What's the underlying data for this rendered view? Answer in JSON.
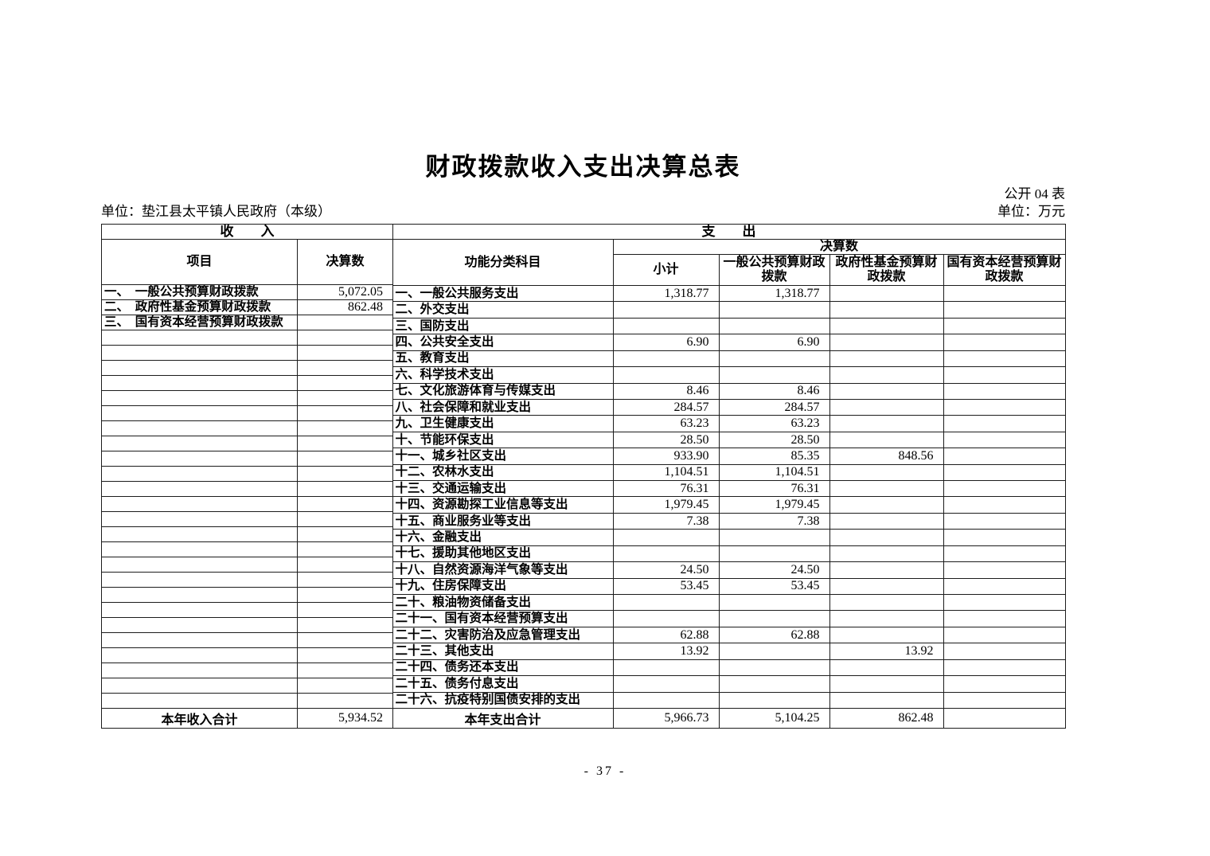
{
  "page": {
    "title": "财政拨款收入支出决算总表",
    "table_code": "公开 04 表",
    "unit_left": "单位：垫江县太平镇人民政府（本级）",
    "unit_right": "单位：万元",
    "page_number": "- 37 -"
  },
  "income": {
    "section_title": "收　　入",
    "columns": {
      "item": "项目",
      "amount": "决算数"
    },
    "rows": [
      {
        "item": "一、　一般公共预算财政拨款",
        "amount": "5,072.05"
      },
      {
        "item": "二、　政府性基金预算财政拨款",
        "amount": "862.48"
      },
      {
        "item": "三、　国有资本经营预算财政拨款",
        "amount": ""
      }
    ],
    "empty_row_count": 25,
    "total": {
      "item": "本年收入合计",
      "amount": "5,934.52"
    }
  },
  "expense": {
    "section_title": "支　　出",
    "subject_column": "功能分类科目",
    "group_header": "决算数",
    "columns": [
      "小计",
      "一般公共预算财政拨款",
      "政府性基金预算财政拨款",
      "国有资本经营预算财政拨款"
    ],
    "rows": [
      {
        "item": "一、一般公共服务支出",
        "values": [
          "1,318.77",
          "1,318.77",
          "",
          ""
        ]
      },
      {
        "item": "二、外交支出",
        "values": [
          "",
          "",
          "",
          ""
        ]
      },
      {
        "item": "三、国防支出",
        "values": [
          "",
          "",
          "",
          ""
        ]
      },
      {
        "item": "四、公共安全支出",
        "values": [
          "6.90",
          "6.90",
          "",
          ""
        ]
      },
      {
        "item": "五、教育支出",
        "values": [
          "",
          "",
          "",
          ""
        ]
      },
      {
        "item": "六、科学技术支出",
        "values": [
          "",
          "",
          "",
          ""
        ]
      },
      {
        "item": "七、文化旅游体育与传媒支出",
        "values": [
          "8.46",
          "8.46",
          "",
          ""
        ]
      },
      {
        "item": "八、社会保障和就业支出",
        "values": [
          "284.57",
          "284.57",
          "",
          ""
        ]
      },
      {
        "item": "九、卫生健康支出",
        "values": [
          "63.23",
          "63.23",
          "",
          ""
        ]
      },
      {
        "item": "十、节能环保支出",
        "values": [
          "28.50",
          "28.50",
          "",
          ""
        ]
      },
      {
        "item": "十一、城乡社区支出",
        "values": [
          "933.90",
          "85.35",
          "848.56",
          ""
        ]
      },
      {
        "item": "十二、农林水支出",
        "values": [
          "1,104.51",
          "1,104.51",
          "",
          ""
        ]
      },
      {
        "item": "十三、交通运输支出",
        "values": [
          "76.31",
          "76.31",
          "",
          ""
        ]
      },
      {
        "item": "十四、资源勘探工业信息等支出",
        "values": [
          "1,979.45",
          "1,979.45",
          "",
          ""
        ]
      },
      {
        "item": "十五、商业服务业等支出",
        "values": [
          "7.38",
          "7.38",
          "",
          ""
        ]
      },
      {
        "item": "十六、金融支出",
        "values": [
          "",
          "",
          "",
          ""
        ]
      },
      {
        "item": "十七、援助其他地区支出",
        "values": [
          "",
          "",
          "",
          ""
        ]
      },
      {
        "item": "十八、自然资源海洋气象等支出",
        "values": [
          "24.50",
          "24.50",
          "",
          ""
        ]
      },
      {
        "item": "十九、住房保障支出",
        "values": [
          "53.45",
          "53.45",
          "",
          ""
        ]
      },
      {
        "item": "二十、粮油物资储备支出",
        "values": [
          "",
          "",
          "",
          ""
        ]
      },
      {
        "item": "二十一、国有资本经营预算支出",
        "values": [
          "",
          "",
          "",
          ""
        ]
      },
      {
        "item": "二十二、灾害防治及应急管理支出",
        "values": [
          "62.88",
          "62.88",
          "",
          ""
        ]
      },
      {
        "item": "二十三、其他支出",
        "values": [
          "13.92",
          "",
          "13.92",
          ""
        ]
      },
      {
        "item": "二十四、债务还本支出",
        "values": [
          "",
          "",
          "",
          ""
        ]
      },
      {
        "item": "二十五、债务付息支出",
        "values": [
          "",
          "",
          "",
          ""
        ]
      },
      {
        "item": "二十六、抗疫特别国债安排的支出",
        "values": [
          "",
          "",
          "",
          ""
        ]
      }
    ],
    "total": {
      "item": "本年支出合计",
      "values": [
        "5,966.73",
        "5,104.25",
        "862.48",
        ""
      ]
    }
  }
}
